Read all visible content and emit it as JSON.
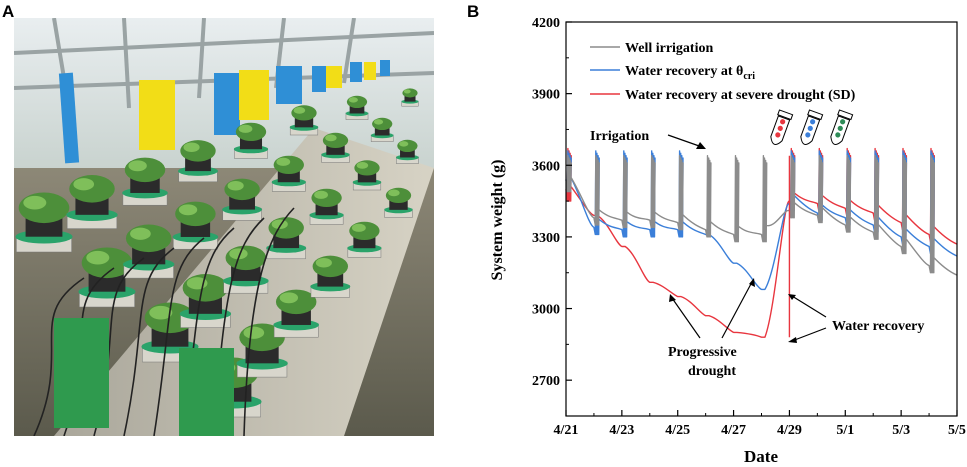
{
  "panels": {
    "a": "A",
    "b": "B"
  },
  "colors": {
    "well": "#8c8c8c",
    "cri": "#3b7fd9",
    "sd": "#e8363f",
    "tube": "#cfcfcf"
  },
  "chart_data": {
    "type": "line",
    "title": "",
    "xlabel": "Date",
    "ylabel": "System weight (g)",
    "xlim": [
      "4/21",
      "5/5"
    ],
    "ylim": [
      2550,
      4200
    ],
    "x_tick_labels": [
      "4/21",
      "4/23",
      "4/25",
      "4/27",
      "4/29",
      "5/1",
      "5/3",
      "5/5"
    ],
    "y_tick_labels": [
      "2700",
      "3000",
      "3300",
      "3600",
      "3900",
      "4200"
    ],
    "y_ticks": [
      2700,
      3000,
      3300,
      3600,
      3900,
      4200
    ],
    "legend_position": "top",
    "legend": [
      {
        "key": "well",
        "label": "Well irrigation"
      },
      {
        "key": "cri",
        "label_main": "Water recovery at θ",
        "label_sub": "cri"
      },
      {
        "key": "sd",
        "label": "Water recovery at severe drought (SD)"
      }
    ],
    "series": [
      {
        "key": "well",
        "name": "Well irrigation",
        "baselines": [
          3520,
          3380,
          3370,
          3370,
          3360,
          3330,
          3310,
          3310,
          3410,
          3390,
          3350,
          3320,
          3260,
          3180
        ],
        "peak": 3640
      },
      {
        "key": "cri",
        "baselines": [
          3520,
          3340,
          3330,
          3330,
          3330,
          3310,
          3190,
          3080,
          3440,
          3400,
          3380,
          3350,
          3300,
          3260
        ],
        "peak": 3660
      },
      {
        "key": "sd",
        "baselines": [
          3480,
          3390,
          3260,
          3110,
          3050,
          2970,
          2900,
          2880,
          3450,
          3440,
          3420,
          3400,
          3360,
          3310
        ],
        "peak": 3670
      }
    ],
    "annotations": {
      "irrigation": "Irrigation",
      "water_recovery": "Water recovery",
      "progressive_1": "Progressive",
      "progressive_2": "drought"
    }
  }
}
